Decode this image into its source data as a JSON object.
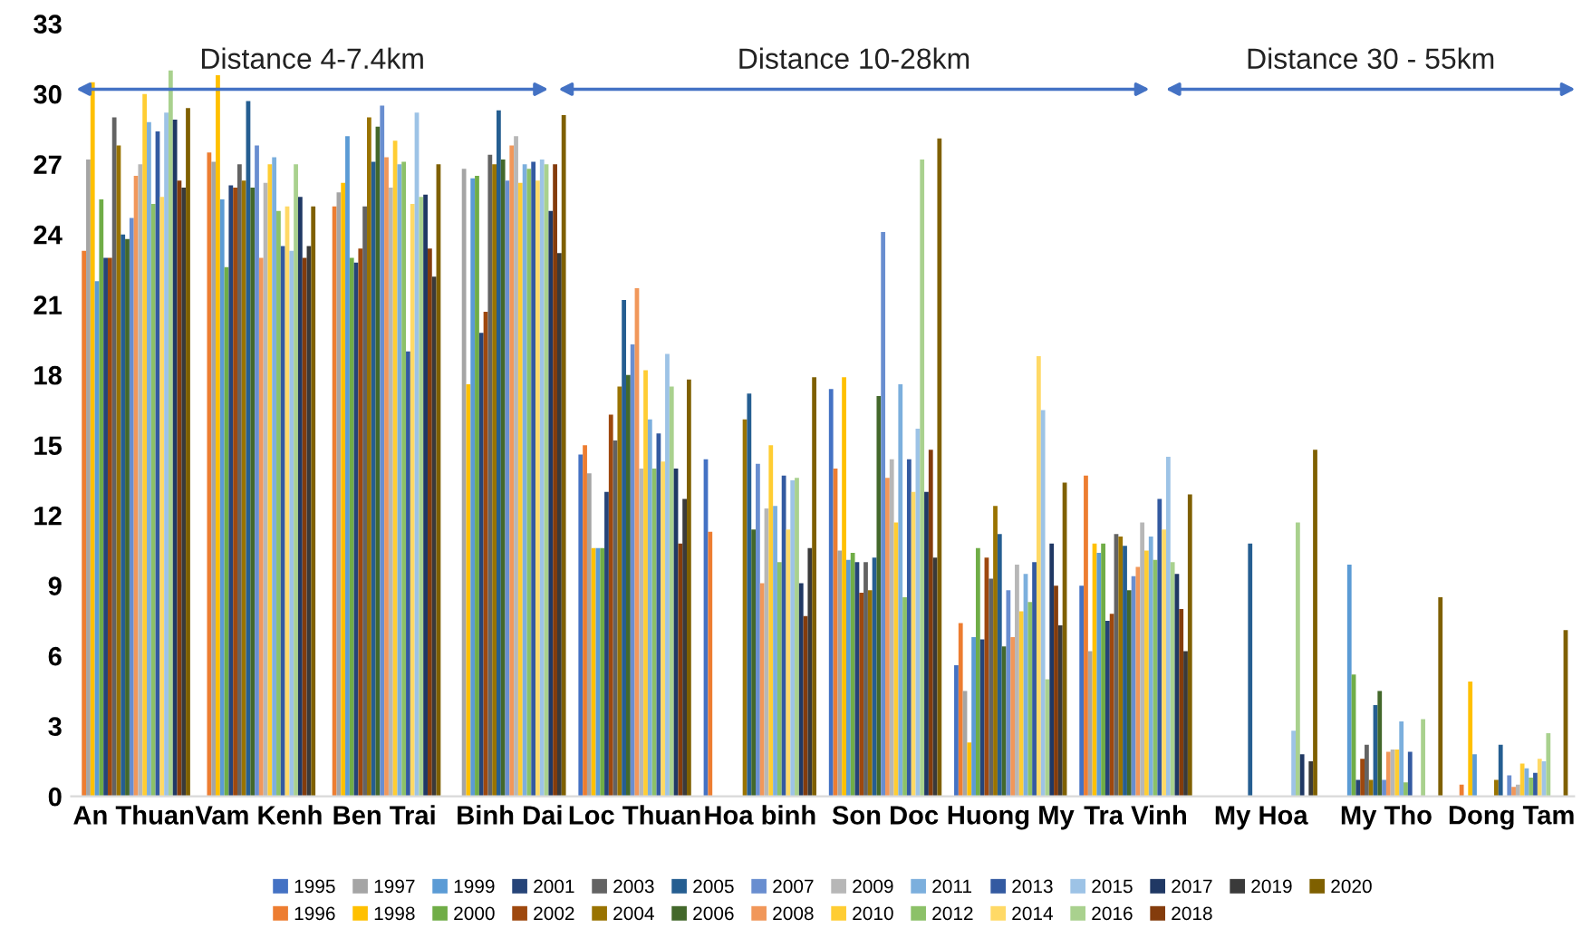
{
  "chart_data": {
    "type": "bar",
    "categories": [
      "An Thuan",
      "Vam Kenh",
      "Ben Trai",
      "Binh Dai",
      "Loc Thuan",
      "Hoa binh",
      "Son Doc",
      "Huong My",
      "Tra Vinh",
      "My Hoa",
      "My Tho",
      "Dong Tam"
    ],
    "annotations": [
      "Distance 4-7.4km",
      "Distance 10-28km",
      "Distance 30 - 55km"
    ],
    "ylim": [
      0,
      33
    ],
    "yticks": [
      0,
      3,
      6,
      9,
      12,
      15,
      18,
      21,
      24,
      27,
      30,
      33
    ],
    "grid": false,
    "legend": "bottom",
    "series": [
      {
        "name": "1995",
        "color": "#4472c4",
        "values": [
          null,
          null,
          null,
          null,
          14.6,
          14.4,
          17.4,
          5.6,
          9.0,
          null,
          null,
          null
        ]
      },
      {
        "name": "1996",
        "color": "#ed7d31",
        "values": [
          23.3,
          27.5,
          25.2,
          null,
          15.0,
          11.3,
          14.0,
          7.4,
          13.7,
          null,
          null,
          0.5
        ]
      },
      {
        "name": "1997",
        "color": "#a5a5a5",
        "values": [
          27.2,
          27.1,
          25.8,
          26.8,
          13.8,
          null,
          10.5,
          4.5,
          6.2,
          null,
          null,
          null
        ]
      },
      {
        "name": "1998",
        "color": "#ffc000",
        "values": [
          30.5,
          30.8,
          26.2,
          17.6,
          10.6,
          null,
          17.9,
          2.3,
          10.8,
          null,
          null,
          4.9
        ]
      },
      {
        "name": "1999",
        "color": "#5b9bd5",
        "values": [
          22.0,
          25.5,
          28.2,
          26.4,
          10.6,
          null,
          10.1,
          6.8,
          10.4,
          null,
          9.9,
          1.8
        ]
      },
      {
        "name": "2000",
        "color": "#70ad47",
        "values": [
          25.5,
          22.6,
          23.0,
          26.5,
          10.6,
          null,
          10.4,
          10.6,
          10.8,
          null,
          5.2,
          null
        ]
      },
      {
        "name": "2001",
        "color": "#264478",
        "values": [
          23.0,
          26.1,
          22.8,
          19.8,
          13.0,
          null,
          10.0,
          6.7,
          7.5,
          null,
          0.7,
          null
        ]
      },
      {
        "name": "2002",
        "color": "#9e480e",
        "values": [
          23.0,
          26.0,
          23.4,
          20.7,
          16.3,
          null,
          8.7,
          10.2,
          7.8,
          null,
          1.6,
          null
        ]
      },
      {
        "name": "2003",
        "color": "#636363",
        "values": [
          29.0,
          27.0,
          25.2,
          27.4,
          15.2,
          null,
          10.0,
          9.3,
          11.2,
          null,
          2.2,
          null
        ]
      },
      {
        "name": "2004",
        "color": "#997300",
        "values": [
          27.8,
          26.3,
          29.0,
          27.0,
          17.5,
          16.1,
          8.8,
          12.4,
          11.1,
          null,
          0.7,
          0.7
        ]
      },
      {
        "name": "2005",
        "color": "#255e91",
        "values": [
          24.0,
          29.7,
          27.1,
          29.3,
          21.2,
          17.2,
          10.2,
          11.2,
          10.7,
          10.8,
          3.9,
          2.2
        ]
      },
      {
        "name": "2006",
        "color": "#43682b",
        "values": [
          23.8,
          26.0,
          28.6,
          27.2,
          18.0,
          11.4,
          17.1,
          6.4,
          8.8,
          null,
          4.5,
          null
        ]
      },
      {
        "name": "2007",
        "color": "#698ed0",
        "values": [
          24.7,
          27.8,
          29.5,
          26.3,
          19.3,
          14.2,
          24.1,
          8.8,
          9.4,
          null,
          0.7,
          0.9
        ]
      },
      {
        "name": "2008",
        "color": "#f1975a",
        "values": [
          26.5,
          23.0,
          27.3,
          27.8,
          21.7,
          9.1,
          13.6,
          6.8,
          9.8,
          null,
          1.9,
          0.4
        ]
      },
      {
        "name": "2009",
        "color": "#b7b7b7",
        "values": [
          27.0,
          26.2,
          26.0,
          28.2,
          14.0,
          12.3,
          14.4,
          9.9,
          11.7,
          null,
          2.0,
          0.5
        ]
      },
      {
        "name": "2010",
        "color": "#ffcd33",
        "values": [
          30.0,
          27.0,
          28.0,
          26.2,
          18.2,
          15.0,
          11.7,
          7.9,
          10.5,
          null,
          2.0,
          1.4
        ]
      },
      {
        "name": "2011",
        "color": "#7cafdd",
        "values": [
          28.8,
          27.3,
          27.0,
          27.0,
          16.1,
          12.4,
          17.6,
          9.5,
          11.1,
          null,
          3.2,
          1.2
        ]
      },
      {
        "name": "2012",
        "color": "#8cc168",
        "values": [
          25.3,
          25.0,
          27.1,
          26.8,
          14.0,
          10.0,
          8.5,
          8.3,
          10.1,
          null,
          0.6,
          0.8
        ]
      },
      {
        "name": "2013",
        "color": "#335aa1",
        "values": [
          28.4,
          23.5,
          19.0,
          27.1,
          15.5,
          13.7,
          14.4,
          10.0,
          12.7,
          null,
          1.9,
          1.0
        ]
      },
      {
        "name": "2014",
        "color": "#ffd966",
        "values": [
          25.6,
          25.2,
          25.3,
          26.3,
          14.3,
          11.4,
          13.0,
          18.8,
          11.4,
          null,
          null,
          1.6
        ]
      },
      {
        "name": "2015",
        "color": "#9dc3e6",
        "values": [
          29.2,
          23.3,
          29.2,
          27.2,
          18.9,
          13.5,
          15.7,
          16.5,
          14.5,
          2.8,
          null,
          1.5
        ]
      },
      {
        "name": "2016",
        "color": "#a9d18e",
        "values": [
          31.0,
          27.0,
          25.6,
          27.0,
          17.5,
          13.6,
          27.2,
          5.0,
          10.0,
          11.7,
          3.3,
          2.7
        ]
      },
      {
        "name": "2017",
        "color": "#203864",
        "values": [
          28.9,
          25.6,
          25.7,
          25.0,
          14.0,
          9.1,
          13.0,
          10.8,
          9.5,
          1.8,
          null,
          null
        ]
      },
      {
        "name": "2018",
        "color": "#843c0c",
        "values": [
          26.3,
          23.0,
          23.4,
          27.0,
          10.8,
          7.7,
          14.8,
          9.0,
          8.0,
          null,
          null,
          null
        ]
      },
      {
        "name": "2019",
        "color": "#3a3a3a",
        "values": [
          26.0,
          23.5,
          22.2,
          23.2,
          12.7,
          10.6,
          10.2,
          7.3,
          6.2,
          1.5,
          null,
          null
        ]
      },
      {
        "name": "2020",
        "color": "#7f6000",
        "values": [
          29.4,
          25.2,
          27.0,
          29.1,
          17.8,
          17.9,
          28.1,
          13.4,
          12.9,
          14.8,
          8.5,
          7.1
        ]
      }
    ]
  }
}
